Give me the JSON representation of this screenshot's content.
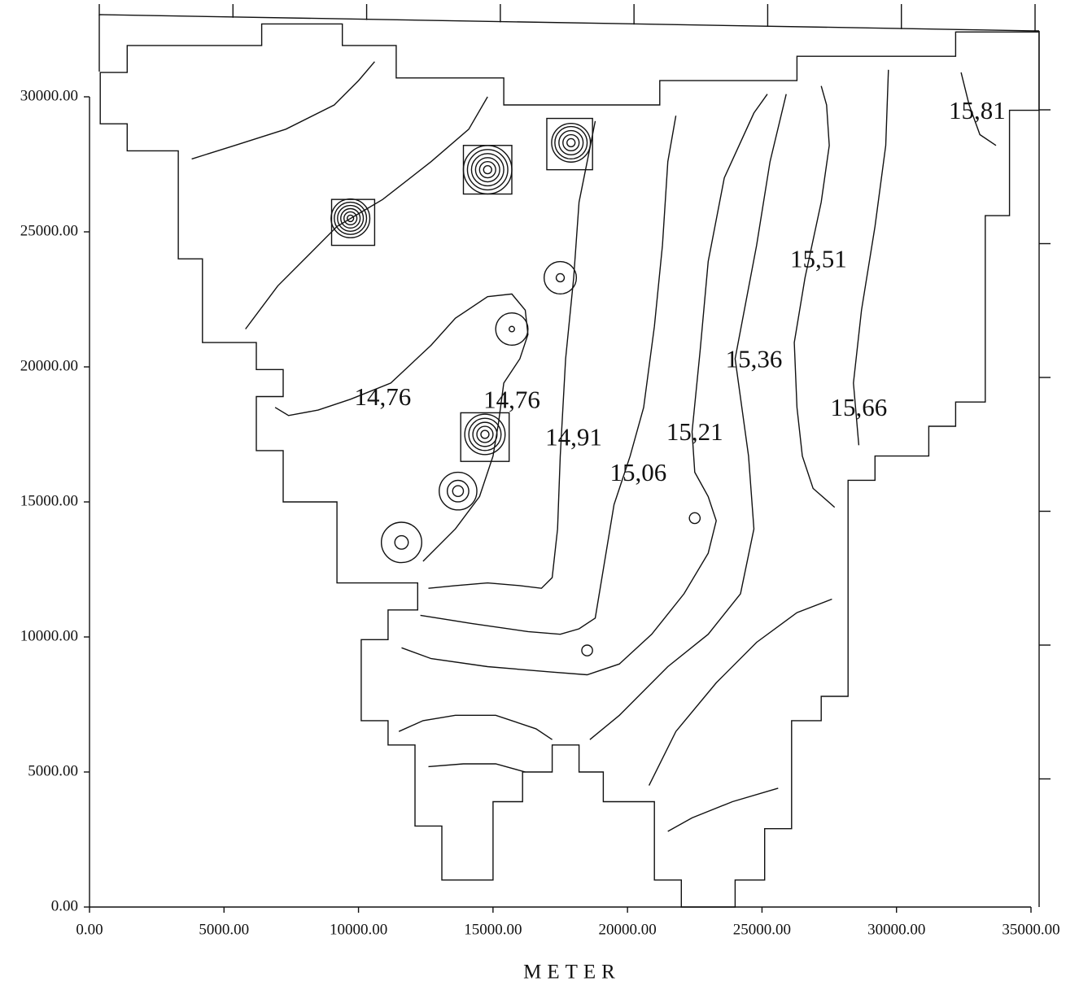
{
  "chart_data": {
    "type": "contour",
    "xlabel": "METER",
    "xlim": [
      0,
      35000
    ],
    "ylim": [
      0,
      30000
    ],
    "xticks": [
      {
        "value": 0,
        "label": "0.00"
      },
      {
        "value": 5000,
        "label": "5000.00"
      },
      {
        "value": 10000,
        "label": "10000.00"
      },
      {
        "value": 15000,
        "label": "15000.00"
      },
      {
        "value": 20000,
        "label": "20000.00"
      },
      {
        "value": 25000,
        "label": "25000.00"
      },
      {
        "value": 30000,
        "label": "30000.00"
      },
      {
        "value": 35000,
        "label": "35000.00"
      }
    ],
    "yticks": [
      {
        "value": 0,
        "label": "0.00"
      },
      {
        "value": 5000,
        "label": "5000.00"
      },
      {
        "value": 10000,
        "label": "10000.00"
      },
      {
        "value": 15000,
        "label": "15000.00"
      },
      {
        "value": 20000,
        "label": "20000.00"
      },
      {
        "value": 25000,
        "label": "25000.00"
      },
      {
        "value": 30000,
        "label": "30000.00"
      }
    ],
    "grid": false,
    "color": "#111111",
    "boundary": {
      "x": [
        400,
        1400,
        1400,
        6400,
        6400,
        9400,
        9400,
        11400,
        11400,
        15400,
        15400,
        21200,
        21200,
        26300,
        26300,
        32200,
        32200,
        35300,
        35300,
        34200,
        34200,
        33300,
        33300,
        32200,
        32200,
        31200,
        31200,
        29200,
        29200,
        28200,
        28200,
        27200,
        27200,
        26100,
        26100,
        25100,
        25100,
        24000,
        24000,
        22000,
        22000,
        21000,
        21000,
        19100,
        19100,
        18200,
        18200,
        17200,
        17200,
        16100,
        16100,
        15000,
        15000,
        13100,
        13100,
        12100,
        12100,
        11100,
        11100,
        10100,
        10100,
        11100,
        11100,
        12200,
        12200,
        9200,
        9200,
        7200,
        7200,
        6200,
        6200,
        7200,
        7200,
        6200,
        6200,
        4200,
        4200,
        3300,
        3300,
        1400,
        1400,
        400
      ],
      "y": [
        30900,
        30900,
        31900,
        31900,
        32700,
        32700,
        31900,
        31900,
        30700,
        30700,
        29700,
        29700,
        30600,
        30600,
        31500,
        31500,
        32400,
        32400,
        29500,
        29500,
        25600,
        25600,
        18700,
        18700,
        17800,
        17800,
        16700,
        16700,
        15800,
        15800,
        7800,
        7800,
        6900,
        6900,
        2900,
        2900,
        1000,
        1000,
        0,
        0,
        1000,
        1000,
        3900,
        3900,
        5000,
        5000,
        6000,
        6000,
        5000,
        5000,
        3900,
        3900,
        1000,
        1000,
        3000,
        3000,
        6000,
        6000,
        6900,
        6900,
        9900,
        9900,
        11000,
        11000,
        12000,
        12000,
        15000,
        15000,
        16900,
        16900,
        18900,
        18900,
        19900,
        19900,
        20900,
        20900,
        24000,
        24000,
        28000,
        28000,
        29000,
        29000
      ]
    },
    "contours": [
      {
        "x": [
          3800,
          5400,
          7300,
          9100,
          10000,
          10600
        ],
        "y": [
          27700,
          28200,
          28800,
          29700,
          30600,
          31300
        ]
      },
      {
        "x": [
          5800,
          7000,
          8200,
          9200,
          10900,
          12700,
          14100,
          14800
        ],
        "y": [
          21400,
          23000,
          24200,
          25200,
          26200,
          27600,
          28800,
          30000
        ]
      },
      {
        "x": [
          6900,
          7400,
          8500,
          9700,
          11200,
          12700,
          13600,
          14800,
          15700,
          16200,
          16300,
          16000,
          15400,
          15200,
          15000,
          14500,
          13600,
          12400
        ],
        "y": [
          18500,
          18200,
          18400,
          18800,
          19400,
          20800,
          21800,
          22600,
          22700,
          22100,
          21200,
          20300,
          19400,
          17900,
          16700,
          15200,
          14000,
          12800
        ]
      },
      {
        "x": [
          12600,
          13600,
          14800,
          16000,
          16800,
          17200,
          17400,
          17500,
          17700,
          18000,
          18200,
          18500,
          18800
        ],
        "y": [
          11800,
          11900,
          12000,
          11900,
          11800,
          12200,
          14000,
          16700,
          20300,
          23300,
          26100,
          27600,
          29100
        ]
      },
      {
        "x": [
          12300,
          14200,
          16300,
          17500,
          18200,
          18800,
          19100,
          19500,
          20100,
          20600,
          21000,
          21300,
          21500,
          21800
        ],
        "y": [
          10800,
          10500,
          10200,
          10100,
          10300,
          10700,
          12500,
          14900,
          16700,
          18500,
          21500,
          24500,
          27600,
          29300
        ]
      },
      {
        "x": [
          11600,
          12700,
          14800,
          17200,
          18500,
          19700,
          20900,
          22100,
          23000,
          23300,
          23000,
          22500,
          22400,
          22700,
          23000,
          23600,
          24700,
          25200
        ],
        "y": [
          9600,
          9200,
          8900,
          8700,
          8600,
          9000,
          10100,
          11600,
          13100,
          14300,
          15200,
          16100,
          17600,
          20600,
          23900,
          27000,
          29400,
          30100
        ]
      },
      {
        "x": [
          18600,
          19700,
          21500,
          23000,
          24200,
          24700,
          24500,
          24000,
          24800,
          25300,
          25900
        ],
        "y": [
          6200,
          7100,
          8900,
          10100,
          11600,
          14000,
          16700,
          20300,
          24500,
          27600,
          30100
        ]
      },
      {
        "x": [
          20800,
          21800,
          23300,
          24800,
          26300,
          27600
        ],
        "y": [
          4500,
          6500,
          8300,
          9800,
          10900,
          11400
        ]
      },
      {
        "x": [
          27700,
          26900,
          26500,
          26300,
          26200,
          26600,
          27200,
          27500,
          27400,
          27200
        ],
        "y": [
          14800,
          15500,
          16700,
          18500,
          20900,
          23300,
          26100,
          28200,
          29700,
          30400
        ]
      },
      {
        "x": [
          28600,
          28400,
          28700,
          29200,
          29600,
          29700
        ],
        "y": [
          17100,
          19400,
          22100,
          25200,
          28200,
          31000
        ]
      },
      {
        "x": [
          32400,
          32700,
          33100,
          33700
        ],
        "y": [
          30900,
          29700,
          28600,
          28200
        ]
      },
      {
        "x": [
          11500,
          12400,
          13600,
          15100,
          16600,
          17200
        ],
        "y": [
          6500,
          6900,
          7100,
          7100,
          6600,
          6200
        ]
      },
      {
        "x": [
          12600,
          13900,
          15100,
          16200
        ],
        "y": [
          5200,
          5300,
          5300,
          5000
        ]
      },
      {
        "x": [
          21500,
          22400,
          23900,
          25600
        ],
        "y": [
          2800,
          3300,
          3900,
          4400
        ]
      }
    ],
    "rings": [
      {
        "x": 17900,
        "y": 28300,
        "r": [
          150,
          300,
          450,
          600,
          720
        ]
      },
      {
        "x": 14800,
        "y": 27300,
        "r": [
          150,
          300,
          450,
          600,
          750,
          900
        ]
      },
      {
        "x": 9700,
        "y": 25500,
        "r": [
          120,
          240,
          360,
          480,
          600,
          720
        ]
      },
      {
        "x": 17500,
        "y": 23300,
        "r": [
          150,
          600
        ]
      },
      {
        "x": 15700,
        "y": 21400,
        "r": [
          100,
          600
        ]
      },
      {
        "x": 14700,
        "y": 17500,
        "r": [
          150,
          300,
          450,
          600,
          750
        ]
      },
      {
        "x": 13700,
        "y": 15400,
        "r": [
          200,
          400,
          700
        ]
      },
      {
        "x": 11600,
        "y": 13500,
        "r": [
          250,
          750
        ]
      },
      {
        "x": 18500,
        "y": 9500,
        "r": [
          200
        ]
      },
      {
        "x": 22500,
        "y": 14400,
        "r": [
          200
        ]
      }
    ],
    "frames": [
      {
        "x": [
          13900,
          15700
        ],
        "y": [
          26400,
          28200
        ]
      },
      {
        "x": [
          17000,
          18700
        ],
        "y": [
          27300,
          29200
        ]
      },
      {
        "x": [
          9000,
          10600
        ],
        "y": [
          24500,
          26200
        ]
      },
      {
        "x": [
          13800,
          15600
        ],
        "y": [
          16500,
          18300
        ]
      }
    ],
    "annotations": [
      {
        "text": "14,76",
        "x": 10900,
        "y": 18800
      },
      {
        "text": "14,76",
        "x": 15700,
        "y": 18700
      },
      {
        "text": "14,91",
        "x": 18000,
        "y": 17300
      },
      {
        "text": "15,06",
        "x": 20400,
        "y": 16000
      },
      {
        "text": "15,21",
        "x": 22500,
        "y": 17500
      },
      {
        "text": "15,36",
        "x": 24700,
        "y": 20200
      },
      {
        "text": "15,51",
        "x": 27100,
        "y": 23900
      },
      {
        "text": "15,66",
        "x": 28600,
        "y": 18400
      },
      {
        "text": "15,81",
        "x": 33000,
        "y": 29400
      }
    ]
  }
}
